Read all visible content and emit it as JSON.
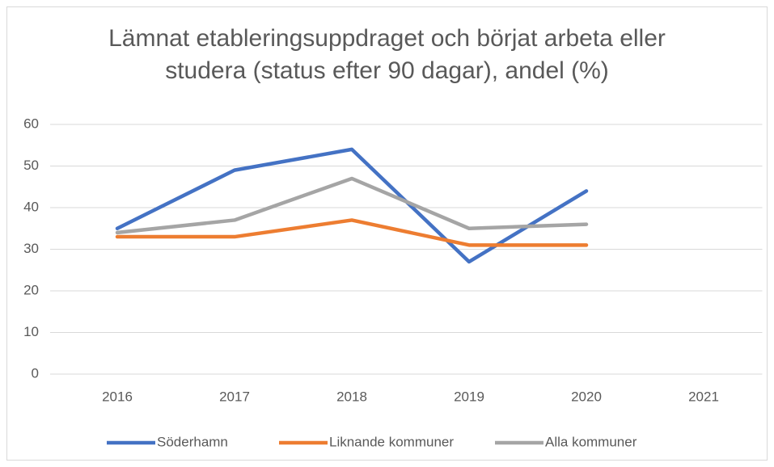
{
  "chart_data": {
    "type": "line",
    "title": "Lämnat etableringsuppdraget och börjat arbeta eller studera (status efter 90 dagar), andel (%)",
    "categories": [
      "2016",
      "2017",
      "2018",
      "2019",
      "2020",
      "2021"
    ],
    "series": [
      {
        "name": "Söderhamn",
        "color": "#4472c4",
        "values": [
          35,
          49,
          54,
          27,
          44,
          null
        ]
      },
      {
        "name": "Liknande kommuner",
        "color": "#ed7d31",
        "values": [
          33,
          33,
          37,
          31,
          31,
          null
        ]
      },
      {
        "name": "Alla kommuner",
        "color": "#a5a5a5",
        "values": [
          34,
          37,
          47,
          35,
          36,
          null
        ]
      }
    ],
    "ylim": [
      0,
      60
    ],
    "yticks": [
      0,
      10,
      20,
      30,
      40,
      50,
      60
    ],
    "grid": true,
    "legend": "bottom"
  }
}
